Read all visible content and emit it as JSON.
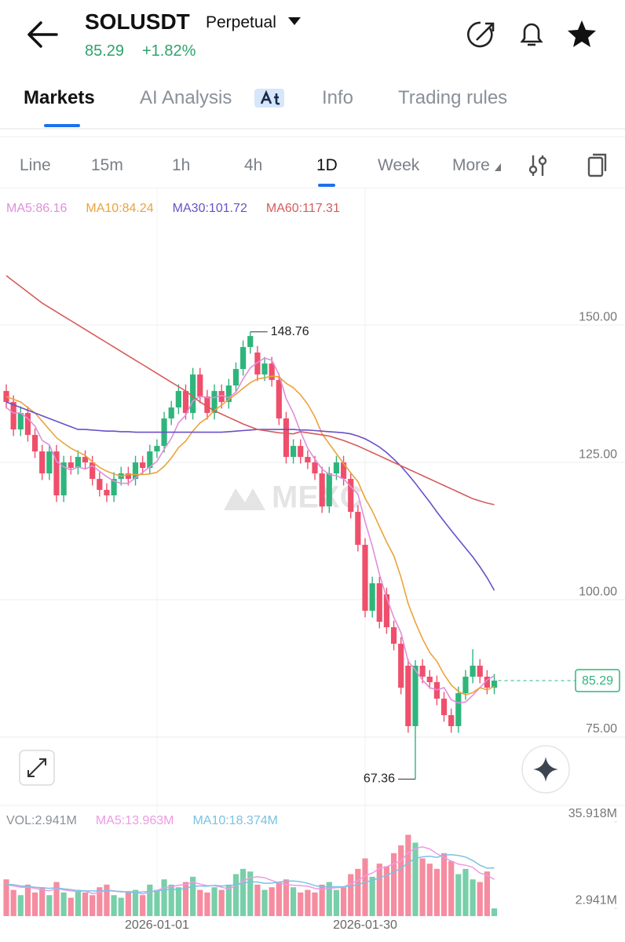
{
  "header": {
    "symbol": "SOLUSDT",
    "contract": "Perpetual",
    "price": "85.29",
    "change": "+1.82%"
  },
  "tabs": [
    "Markets",
    "AI Analysis",
    "Info",
    "Trading rules"
  ],
  "active_tab": 0,
  "intervals": [
    "Line",
    "15m",
    "1h",
    "4h",
    "1D",
    "Week",
    "More"
  ],
  "active_interval": 4,
  "chart_data": [
    {
      "type": "candlestick",
      "watermark": "MEXC",
      "up_color": "#2fb57c",
      "down_color": "#ef4f6b",
      "grid": true,
      "mark_extremes": true,
      "last_price": 85.29,
      "last_price_color": "#2fb57c",
      "ylim": [
        62,
        166.3
      ],
      "yticks": [
        {
          "value": 75,
          "label": "75.00"
        },
        {
          "value": 100,
          "label": "100.00"
        },
        {
          "value": 125,
          "label": "125.00"
        },
        {
          "value": 150,
          "label": "150.00"
        }
      ],
      "ohlc": [
        [
          138,
          139.2,
          134.8,
          136
        ],
        [
          136,
          137.2,
          129.8,
          131
        ],
        [
          131,
          135.2,
          129.8,
          134
        ],
        [
          134,
          135.2,
          128.8,
          130
        ],
        [
          130,
          131.2,
          125.8,
          127
        ],
        [
          127,
          128.2,
          121.8,
          123
        ],
        [
          123,
          128.2,
          121.8,
          127
        ],
        [
          127,
          128.2,
          117.8,
          119
        ],
        [
          119,
          126.2,
          117.8,
          125
        ],
        [
          125,
          126.2,
          122.8,
          124
        ],
        [
          124,
          127.2,
          122.8,
          126
        ],
        [
          126,
          127.2,
          123.8,
          125
        ],
        [
          125,
          126.2,
          120.8,
          122
        ],
        [
          122,
          123.2,
          118.8,
          120
        ],
        [
          120,
          121.2,
          117.8,
          119
        ],
        [
          119,
          123.2,
          117.8,
          122
        ],
        [
          122,
          124.2,
          120.8,
          123
        ],
        [
          123,
          124.2,
          120.8,
          122
        ],
        [
          122,
          126.2,
          120.8,
          125
        ],
        [
          125,
          126.2,
          122.8,
          124
        ],
        [
          124,
          128.2,
          122.8,
          127
        ],
        [
          127,
          129.2,
          125.8,
          128
        ],
        [
          128,
          134.2,
          126.8,
          133
        ],
        [
          133,
          136.2,
          131.8,
          135
        ],
        [
          135,
          139.2,
          133.8,
          138
        ],
        [
          138,
          139.2,
          132.8,
          134
        ],
        [
          134,
          142.2,
          132.8,
          141
        ],
        [
          141,
          142.2,
          135.8,
          137
        ],
        [
          137,
          138.2,
          132.8,
          134
        ],
        [
          134,
          139.2,
          132.8,
          138
        ],
        [
          138,
          139.2,
          134.8,
          136
        ],
        [
          136,
          140.2,
          134.8,
          139
        ],
        [
          139,
          143.2,
          137.8,
          142
        ],
        [
          142,
          147.2,
          140.8,
          146
        ],
        [
          146,
          148.76,
          144.8,
          148
        ],
        [
          145,
          146.2,
          139.8,
          141
        ],
        [
          141,
          144.2,
          139.8,
          143
        ],
        [
          143,
          144.2,
          138.8,
          140
        ],
        [
          140,
          141.2,
          131.8,
          133
        ],
        [
          133,
          134.2,
          124.8,
          126
        ],
        [
          126,
          129.2,
          124.8,
          128
        ],
        [
          128,
          129.2,
          124.8,
          126
        ],
        [
          126,
          127.2,
          123.8,
          125
        ],
        [
          125,
          126.2,
          121.8,
          123
        ],
        [
          123,
          124.2,
          115.8,
          117
        ],
        [
          117,
          124.2,
          115.8,
          123
        ],
        [
          123,
          126.2,
          121.8,
          125
        ],
        [
          125,
          126.2,
          120.8,
          122
        ],
        [
          122,
          123.2,
          114.8,
          116
        ],
        [
          116,
          117.2,
          108.8,
          110
        ],
        [
          110,
          111.2,
          96.8,
          98
        ],
        [
          98,
          104.2,
          96.8,
          103
        ],
        [
          103,
          104.2,
          94.8,
          96
        ],
        [
          101,
          102.2,
          93.8,
          95
        ],
        [
          95,
          96.2,
          90.8,
          92
        ],
        [
          92,
          93.2,
          82.8,
          84
        ],
        [
          88,
          89.2,
          75.8,
          77
        ],
        [
          77,
          89,
          67.36,
          88
        ],
        [
          88,
          89.2,
          84.8,
          86
        ],
        [
          86,
          87.2,
          83.8,
          85
        ],
        [
          85,
          86.2,
          80.8,
          82
        ],
        [
          82,
          83.2,
          77.8,
          79
        ],
        [
          79,
          80.2,
          75.8,
          77
        ],
        [
          77,
          84.2,
          75.8,
          83
        ],
        [
          83,
          87.2,
          81.8,
          86
        ],
        [
          86,
          91,
          84.8,
          88
        ],
        [
          88,
          89.2,
          84.8,
          86
        ],
        [
          86,
          87.2,
          82.8,
          84
        ],
        [
          84,
          86.5,
          82.8,
          85.29
        ]
      ],
      "series": [
        {
          "name": "MA5:86.16",
          "color": "#df8fdc",
          "values": [
            135,
            134,
            134,
            133,
            131.6,
            129,
            128.2,
            125.2,
            124.2,
            123.6,
            124.2,
            123.8,
            124.4,
            123.4,
            122.4,
            121.6,
            121.2,
            121.2,
            122.2,
            123.2,
            124.2,
            125.2,
            127.4,
            129.4,
            132.2,
            133.6,
            136.2,
            137,
            136.8,
            136.8,
            137.2,
            136.8,
            137.8,
            140.2,
            142.2,
            143.2,
            144,
            143.6,
            141,
            136.6,
            134,
            130.6,
            127.6,
            125.6,
            123.8,
            122.8,
            122.6,
            122,
            120.6,
            119.2,
            114.2,
            109.8,
            104.6,
            100.4,
            96.8,
            94,
            88.8,
            87.2,
            85.4,
            84,
            83.6,
            84,
            81.8,
            81.2,
            81.4,
            82.6,
            84,
            85.4,
            86.16
          ]
        },
        {
          "name": "MA10:84.24",
          "color": "#eba33b",
          "values": [
            137,
            136.5,
            136,
            135,
            134,
            132.5,
            131,
            129.5,
            128.5,
            127.6,
            126.9,
            126.3,
            125.1,
            124.1,
            123.4,
            122.9,
            122.5,
            122.8,
            122.8,
            122.8,
            122.9,
            123.2,
            124.3,
            125.8,
            127.7,
            128.9,
            130.7,
            132.2,
            133.1,
            134.5,
            135.4,
            136.5,
            137.4,
            138.5,
            139.5,
            140.2,
            140.4,
            140.7,
            140.6,
            139.4,
            138.6,
            137.3,
            135.6,
            133.3,
            130.2,
            128.4,
            126.6,
            124.8,
            123.1,
            121.5,
            118.5,
            116.2,
            113.3,
            110.5,
            108,
            104.1,
            99.3,
            95.9,
            92.9,
            90.4,
            88.8,
            86.4,
            84.5,
            83.3,
            82.7,
            83.1,
            84,
            83.6,
            84.24
          ]
        },
        {
          "name": "MA30:101.72",
          "color": "#6a50c8",
          "values": [
            136,
            135.5,
            135,
            134.5,
            134,
            133.5,
            133,
            132.5,
            132,
            131.5,
            131,
            131,
            130.9,
            130.8,
            130.7,
            130.7,
            130.6,
            130.6,
            130.5,
            130.5,
            130.5,
            130.5,
            130.5,
            130.5,
            130.5,
            130.5,
            130.5,
            130.5,
            130.5,
            130.5,
            130.5,
            130.6,
            130.7,
            130.8,
            130.9,
            131,
            131,
            131,
            131,
            131,
            131,
            130.9,
            130.9,
            130.8,
            130.7,
            130.6,
            130.5,
            130.4,
            130.2,
            129.8,
            129.3,
            128.6,
            127.8,
            126.8,
            125.6,
            124.3,
            122.8,
            121.2,
            119.5,
            117.8,
            116,
            114.3,
            112.6,
            111,
            109.4,
            107.8,
            106,
            104,
            101.72
          ]
        },
        {
          "name": "MA60:117.31",
          "color": "#d65b5b",
          "values": [
            159,
            158,
            157,
            156,
            155,
            154,
            153.2,
            152.4,
            151.6,
            150.8,
            150,
            149.2,
            148.4,
            147.6,
            146.8,
            146,
            145.2,
            144.4,
            143.6,
            142.8,
            142,
            141.2,
            140.4,
            139.6,
            138.8,
            138,
            137,
            136,
            135.2,
            134.4,
            133.8,
            133.2,
            132.6,
            132,
            131.5,
            131,
            130.8,
            130.6,
            130.4,
            130.3,
            130.2,
            130.6,
            130.4,
            130.2,
            130,
            129.8,
            129.4,
            129,
            128.5,
            128,
            127.4,
            126.8,
            126.2,
            125.6,
            125,
            124.4,
            123.8,
            123.2,
            122.6,
            122,
            121.4,
            120.8,
            120.2,
            119.6,
            119,
            118.4,
            118,
            117.6,
            117.31
          ]
        }
      ]
    },
    {
      "type": "bar",
      "ylim": [
        0,
        35.918
      ],
      "yticks": [
        {
          "value": 35.918,
          "label": "35.918M"
        },
        {
          "value": 2.941,
          "label": "2.941M"
        }
      ],
      "categories": [
        null,
        null,
        null,
        null,
        null,
        null,
        null,
        null,
        null,
        null,
        null,
        null,
        null,
        null,
        null,
        null,
        null,
        null,
        null,
        null,
        null,
        "2026-01-01",
        null,
        null,
        null,
        null,
        null,
        null,
        null,
        null,
        null,
        null,
        null,
        null,
        null,
        null,
        null,
        null,
        null,
        null,
        null,
        null,
        null,
        null,
        null,
        null,
        null,
        null,
        null,
        null,
        "2026-01-30",
        null,
        null,
        null,
        null,
        null,
        null,
        null,
        null,
        null,
        null,
        null,
        null,
        null,
        null,
        null,
        null,
        null,
        null
      ],
      "series": [
        {
          "name": "VOL:2.941M",
          "color": "#8b9098",
          "values": [
            14,
            10,
            8,
            12,
            9,
            11,
            8,
            13,
            9,
            7,
            10,
            9,
            8,
            11,
            12,
            8,
            7,
            9,
            10,
            8,
            12,
            10,
            14,
            12,
            11,
            13,
            15,
            10,
            9,
            11,
            10,
            12,
            16,
            18,
            17,
            12,
            10,
            11,
            13,
            14,
            11,
            9,
            10,
            9,
            12,
            13,
            10,
            11,
            16,
            18,
            22,
            15,
            20,
            19,
            24,
            27,
            31,
            28,
            22,
            20,
            18,
            24,
            21,
            16,
            18,
            14,
            13,
            17,
            2.941
          ]
        },
        {
          "name": "MA5:13.963M",
          "color": "#ee9ae6",
          "values": [
            12,
            11.5,
            11,
            11,
            10.6,
            10,
            9.6,
            10.6,
            10,
            9.6,
            9.4,
            9.6,
            8.6,
            9,
            10,
            9.6,
            9.2,
            9.4,
            9.2,
            8.4,
            9.2,
            9.8,
            10.8,
            11.2,
            11.8,
            12,
            13,
            12.2,
            11.6,
            11.6,
            11,
            10.4,
            11.6,
            13.4,
            14.6,
            15,
            14.6,
            13.6,
            12.6,
            12,
            11.8,
            11.6,
            11.4,
            10.6,
            10.2,
            10.6,
            10.8,
            11,
            12.4,
            13.6,
            15.4,
            16.4,
            18.2,
            18.8,
            20,
            21,
            24.2,
            25.8,
            26.4,
            25.6,
            23.8,
            22.4,
            21,
            19.8,
            19.4,
            18.6,
            16.4,
            15.6,
            13.963
          ]
        },
        {
          "name": "MA10:18.374M",
          "color": "#79c3e4",
          "values": [
            12,
            12,
            11.5,
            11.3,
            11,
            10.8,
            10.6,
            10.8,
            10.4,
            10.1,
            9.7,
            9.6,
            9.6,
            9.5,
            9.8,
            9.5,
            9.4,
            9,
            9.1,
            9.2,
            9.4,
            9.5,
            10.1,
            10.2,
            10.1,
            10.6,
            11.4,
            11.5,
            11.4,
            11.7,
            11.5,
            11.7,
            11.9,
            12.5,
            13.1,
            13,
            12.5,
            12.6,
            13,
            13.3,
            13.4,
            13.1,
            12.5,
            11.6,
            11.1,
            11.2,
            11.2,
            11.2,
            11.5,
            11.9,
            13,
            13.6,
            14.6,
            15.6,
            16.8,
            18.2,
            20.3,
            22,
            22.6,
            22.8,
            22.4,
            23.3,
            23.4,
            23.1,
            22.5,
            21.2,
            19.4,
            18.3,
            18.374
          ]
        }
      ]
    }
  ]
}
